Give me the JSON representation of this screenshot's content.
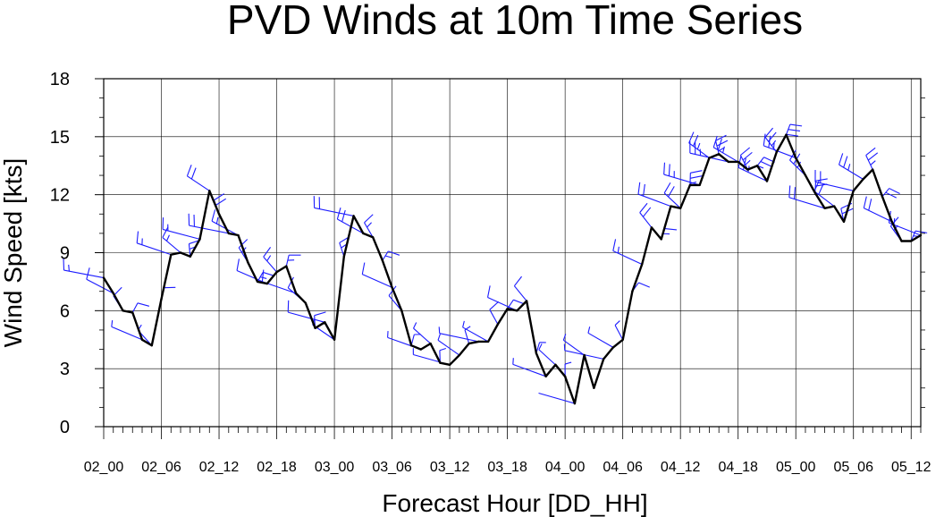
{
  "chart_data": {
    "type": "line",
    "title": "PVD Winds at 10m Time Series",
    "xlabel": "Forecast Hour [DD_HH]",
    "ylabel": "Wind Speed [kts]",
    "ylim": [
      0,
      18
    ],
    "yticks": [
      "0",
      "3",
      "6",
      "9",
      "12",
      "15",
      "18"
    ],
    "xticks": [
      "02_00",
      "02_06",
      "02_12",
      "02_18",
      "03_00",
      "03_06",
      "03_12",
      "03_18",
      "04_00",
      "04_06",
      "04_12",
      "04_18",
      "05_00",
      "05_06",
      "05_12"
    ],
    "x_hours": [
      0,
      6,
      12,
      18,
      24,
      30,
      36,
      42,
      48,
      54,
      60,
      66,
      72,
      78,
      84
    ],
    "grid": true,
    "series": [
      {
        "x": [
          0,
          1,
          2,
          3,
          4,
          5,
          6,
          7,
          8,
          9,
          10,
          11,
          12,
          13,
          14,
          15,
          16,
          17,
          18,
          19,
          20,
          21,
          22,
          23,
          24,
          25,
          26,
          27,
          28,
          29,
          30,
          31,
          32,
          33,
          34,
          35,
          36,
          37,
          38,
          39,
          40,
          41,
          42,
          43,
          44,
          45,
          46,
          47,
          48,
          49,
          50,
          51,
          52,
          53,
          54,
          55,
          56,
          57,
          58,
          59,
          60,
          61,
          62,
          63,
          64,
          65,
          66,
          67,
          68,
          69,
          70,
          71,
          72,
          73,
          74,
          75,
          76,
          77,
          78,
          79,
          80,
          81,
          82,
          83,
          84,
          85
        ],
        "values": [
          7.7,
          6.9,
          6.0,
          5.9,
          4.5,
          4.2,
          6.6,
          8.9,
          9.0,
          8.8,
          9.7,
          12.2,
          11.0,
          10.0,
          9.9,
          8.5,
          7.5,
          7.4,
          8.0,
          8.3,
          6.9,
          6.4,
          5.1,
          5.4,
          4.5,
          8.8,
          10.9,
          10.0,
          9.8,
          8.6,
          7.2,
          6.0,
          4.2,
          4.0,
          4.3,
          3.3,
          3.2,
          3.7,
          4.3,
          4.4,
          4.4,
          5.3,
          6.1,
          6.0,
          6.5,
          3.8,
          2.6,
          3.2,
          2.6,
          1.2,
          3.7,
          2.0,
          3.5,
          4.1,
          4.5,
          7.0,
          8.4,
          10.3,
          9.7,
          11.4,
          11.3,
          12.5,
          12.5,
          13.9,
          14.1,
          13.7,
          13.7,
          13.3,
          13.5,
          12.7,
          14.2,
          15.1,
          13.9,
          13.0,
          12.1,
          11.3,
          11.4,
          10.6,
          12.2,
          12.8,
          13.3,
          11.9,
          10.6,
          9.6,
          9.6,
          9.9
        ]
      }
    ]
  }
}
